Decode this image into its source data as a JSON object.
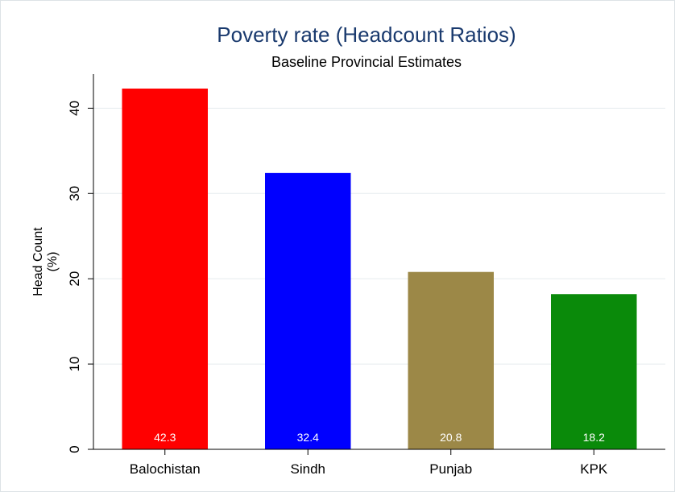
{
  "chart_data": {
    "type": "bar",
    "title": "Poverty rate (Headcount Ratios)",
    "subtitle": "Baseline Provincial Estimates",
    "ylabel_lines": [
      "Head Count",
      "(%)"
    ],
    "xlabel": "",
    "categories": [
      "Balochistan",
      "Sindh",
      "Punjab",
      "KPK"
    ],
    "values": [
      42.3,
      32.4,
      20.8,
      18.2
    ],
    "data_labels": [
      "42.3",
      "32.4",
      "20.8",
      "18.2"
    ],
    "colors": [
      "#ff0000",
      "#0000ff",
      "#9c8847",
      "#0a8a0a"
    ],
    "ylim": [
      0,
      44
    ],
    "yticks": [
      0,
      10,
      20,
      30,
      40
    ],
    "grid": true,
    "legend": "none"
  }
}
